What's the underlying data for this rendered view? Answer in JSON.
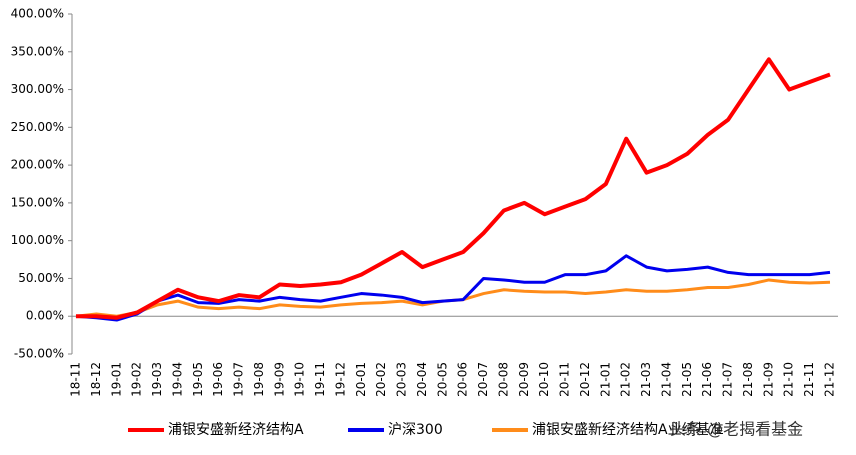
{
  "chart_data": {
    "type": "line",
    "categories": [
      "18-11",
      "18-12",
      "19-01",
      "19-02",
      "19-03",
      "19-04",
      "19-05",
      "19-06",
      "19-07",
      "19-08",
      "19-09",
      "19-10",
      "19-11",
      "19-12",
      "20-01",
      "20-02",
      "20-03",
      "20-04",
      "20-05",
      "20-06",
      "20-07",
      "20-08",
      "20-09",
      "20-10",
      "20-11",
      "20-12",
      "21-01",
      "21-02",
      "21-03",
      "21-04",
      "21-05",
      "21-06",
      "21-07",
      "21-08",
      "21-09",
      "21-10",
      "21-11",
      "21-12"
    ],
    "series": [
      {
        "name": "浦银安盛新经济结构A",
        "color": "#ff0000",
        "values": [
          0,
          0,
          -2,
          5,
          20,
          35,
          25,
          20,
          28,
          25,
          42,
          40,
          42,
          45,
          55,
          70,
          85,
          65,
          75,
          85,
          110,
          140,
          150,
          135,
          145,
          155,
          175,
          235,
          190,
          200,
          215,
          240,
          260,
          300,
          340,
          300,
          310,
          320
        ]
      },
      {
        "name": "沪深300",
        "color": "#0000ee",
        "values": [
          0,
          -2,
          -5,
          3,
          20,
          28,
          18,
          17,
          22,
          20,
          25,
          22,
          20,
          25,
          30,
          28,
          25,
          18,
          20,
          22,
          50,
          48,
          45,
          45,
          55,
          55,
          60,
          80,
          65,
          60,
          62,
          65,
          58,
          55,
          55,
          55,
          55,
          58
        ]
      },
      {
        "name": "浦银安盛新经济结构A业绩基准",
        "color": "#ff8c1a",
        "values": [
          0,
          3,
          0,
          5,
          15,
          20,
          12,
          10,
          12,
          10,
          15,
          13,
          12,
          15,
          17,
          18,
          20,
          15,
          20,
          22,
          30,
          35,
          33,
          32,
          32,
          30,
          32,
          35,
          33,
          33,
          35,
          38,
          38,
          42,
          48,
          45,
          44,
          45
        ]
      }
    ],
    "ylim": [
      -50,
      400
    ],
    "yticks": [
      {
        "value": -50,
        "label": "-50.00%"
      },
      {
        "value": 0,
        "label": "0.00%"
      },
      {
        "value": 50,
        "label": "50.00%"
      },
      {
        "value": 100,
        "label": "100.00%"
      },
      {
        "value": 150,
        "label": "150.00%"
      },
      {
        "value": 200,
        "label": "200.00%"
      },
      {
        "value": 250,
        "label": "250.00%"
      },
      {
        "value": 300,
        "label": "300.00%"
      },
      {
        "value": 350,
        "label": "350.00%"
      },
      {
        "value": 400,
        "label": "400.00%"
      }
    ],
    "watermark": "头条 @老揭看基金"
  }
}
